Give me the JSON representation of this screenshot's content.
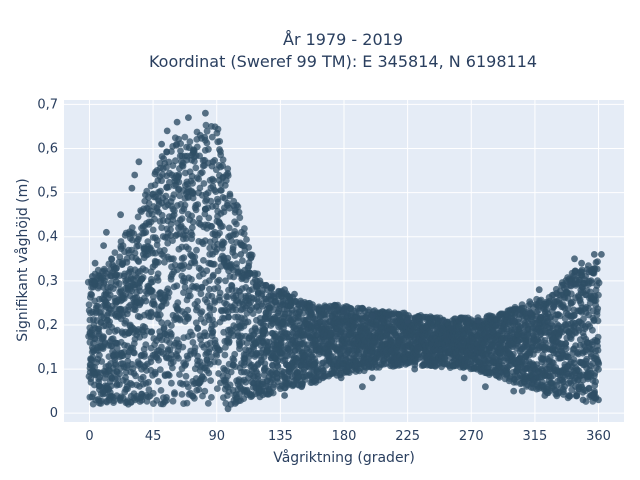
{
  "chart_data": {
    "type": "scatter",
    "title_line1": "År 1979 - 2019",
    "title_line2": "Koordinat (Sweref 99 TM): E 345814, N 6198114",
    "xlabel": "Vågriktning (grader)",
    "ylabel": "Signifikant våghöjd (m)",
    "xlim": [
      -18,
      378
    ],
    "ylim": [
      -0.02,
      0.71
    ],
    "xticks": [
      0,
      45,
      90,
      135,
      180,
      225,
      270,
      315,
      360
    ],
    "xtick_labels": [
      "0",
      "45",
      "90",
      "135",
      "180",
      "225",
      "270",
      "315",
      "360"
    ],
    "yticks": [
      0,
      0.1,
      0.2,
      0.3,
      0.4,
      0.5,
      0.6,
      0.7
    ],
    "ytick_labels": [
      "0",
      "0,1",
      "0,2",
      "0,3",
      "0,4",
      "0,5",
      "0,6",
      "0,7"
    ],
    "grid": true,
    "background_color": "#e5ecf6",
    "marker_color": "#2f4f66",
    "series": [
      {
        "upper_envelope": [
          [
            0,
            0.33
          ],
          [
            10,
            0.34
          ],
          [
            20,
            0.4
          ],
          [
            30,
            0.44
          ],
          [
            40,
            0.52
          ],
          [
            50,
            0.6
          ],
          [
            60,
            0.65
          ],
          [
            70,
            0.66
          ],
          [
            80,
            0.68
          ],
          [
            90,
            0.67
          ],
          [
            100,
            0.55
          ],
          [
            110,
            0.42
          ],
          [
            120,
            0.32
          ],
          [
            130,
            0.29
          ],
          [
            140,
            0.28
          ],
          [
            150,
            0.26
          ],
          [
            160,
            0.25
          ],
          [
            180,
            0.25
          ],
          [
            200,
            0.24
          ],
          [
            225,
            0.23
          ],
          [
            250,
            0.22
          ],
          [
            270,
            0.22
          ],
          [
            290,
            0.23
          ],
          [
            310,
            0.26
          ],
          [
            320,
            0.27
          ],
          [
            330,
            0.29
          ],
          [
            340,
            0.33
          ],
          [
            350,
            0.34
          ],
          [
            360,
            0.36
          ]
        ],
        "lower_envelope": [
          [
            0,
            0.02
          ],
          [
            100,
            0.02
          ],
          [
            135,
            0.05
          ],
          [
            160,
            0.07
          ],
          [
            180,
            0.09
          ],
          [
            225,
            0.11
          ],
          [
            270,
            0.1
          ],
          [
            300,
            0.07
          ],
          [
            330,
            0.04
          ],
          [
            360,
            0.02
          ]
        ],
        "points": [
          [
            82,
            0.68
          ],
          [
            70,
            0.67
          ],
          [
            62,
            0.66
          ],
          [
            55,
            0.64
          ],
          [
            51,
            0.61
          ],
          [
            35,
            0.57
          ],
          [
            32,
            0.54
          ],
          [
            30,
            0.51
          ],
          [
            22,
            0.45
          ],
          [
            12,
            0.41
          ],
          [
            10,
            0.38
          ],
          [
            4,
            0.34
          ],
          [
            2,
            0.31
          ],
          [
            1,
            0.27
          ],
          [
            102,
            0.47
          ],
          [
            107,
            0.36
          ],
          [
            112,
            0.31
          ],
          [
            118,
            0.29
          ],
          [
            125,
            0.29
          ],
          [
            130,
            0.27
          ],
          [
            138,
            0.28
          ],
          [
            145,
            0.27
          ],
          [
            150,
            0.25
          ],
          [
            158,
            0.24
          ],
          [
            168,
            0.24
          ],
          [
            180,
            0.23
          ],
          [
            200,
            0.22
          ],
          [
            225,
            0.21
          ],
          [
            250,
            0.21
          ],
          [
            275,
            0.21
          ],
          [
            300,
            0.21
          ],
          [
            311,
            0.23
          ],
          [
            318,
            0.28
          ],
          [
            328,
            0.24
          ],
          [
            340,
            0.29
          ],
          [
            343,
            0.35
          ],
          [
            348,
            0.34
          ],
          [
            353,
            0.32
          ],
          [
            357,
            0.36
          ],
          [
            362,
            0.36
          ],
          [
            98,
            0.01
          ],
          [
            100,
            0.02
          ],
          [
            138,
            0.04
          ],
          [
            150,
            0.06
          ],
          [
            160,
            0.07
          ],
          [
            165,
            0.08
          ],
          [
            178,
            0.08
          ],
          [
            193,
            0.06
          ],
          [
            200,
            0.08
          ],
          [
            230,
            0.1
          ],
          [
            265,
            0.08
          ],
          [
            280,
            0.06
          ],
          [
            300,
            0.05
          ],
          [
            306,
            0.05
          ],
          [
            322,
            0.04
          ],
          [
            330,
            0.05
          ],
          [
            339,
            0.04
          ],
          [
            349,
            0.03
          ],
          [
            355,
            0.04
          ],
          [
            360,
            0.03
          ]
        ]
      }
    ]
  }
}
